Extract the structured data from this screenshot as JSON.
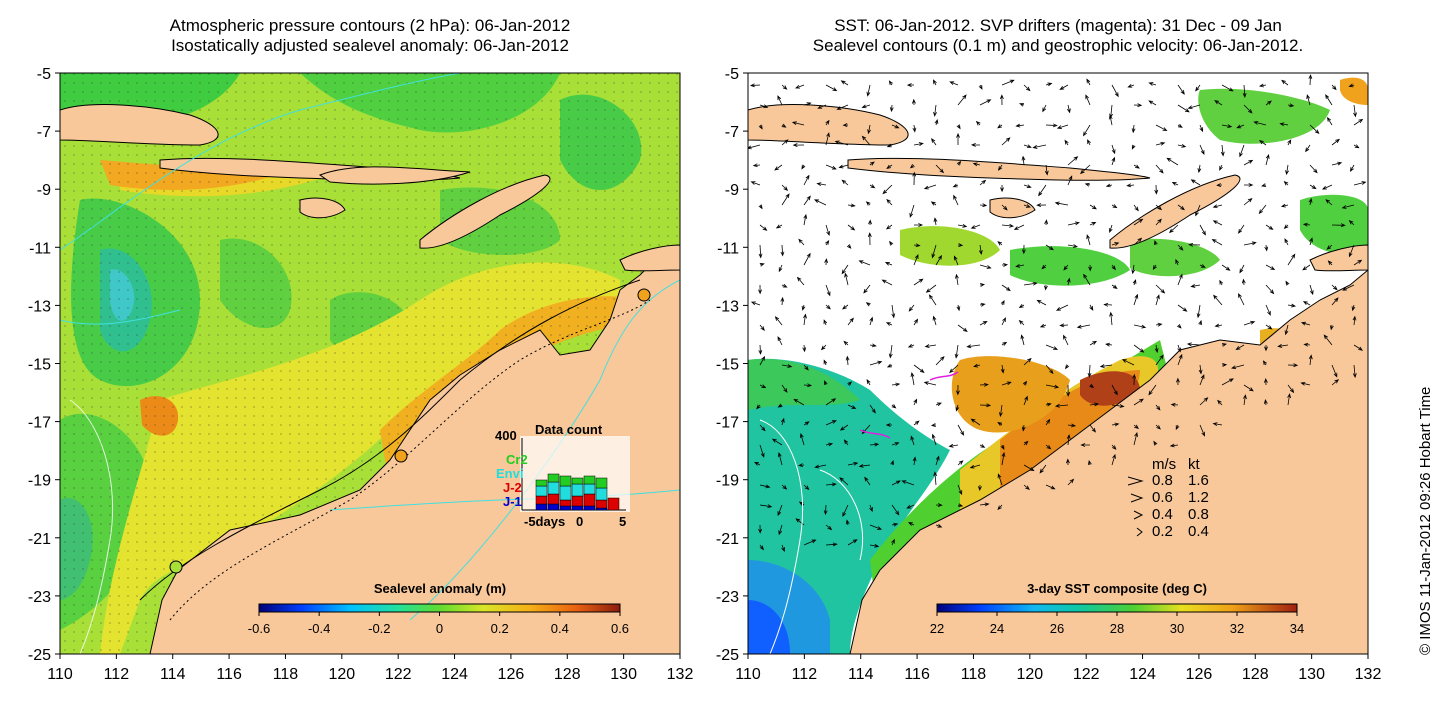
{
  "left_panel": {
    "title_line1": "Atmospheric pressure contours (2 hPa): 06-Jan-2012",
    "title_line2": "Isostatically adjusted sealevel anomaly: 06-Jan-2012",
    "colorbar": {
      "title": "Sealevel anomaly (m)",
      "ticks": [
        "-0.6",
        "-0.4",
        "-0.2",
        "0",
        "0.2",
        "0.4",
        "0.6"
      ]
    },
    "data_count": {
      "title": "Data count",
      "y_label": "400",
      "satellites": [
        {
          "name": "Cr2",
          "color": "#22cc22"
        },
        {
          "name": "Envi",
          "color": "#22dddd"
        },
        {
          "name": "J-2",
          "color": "#dd0000"
        },
        {
          "name": "J-1",
          "color": "#0000cc"
        }
      ],
      "x_labels": [
        "-5days",
        "0",
        "5"
      ]
    }
  },
  "right_panel": {
    "title_line1": "SST: 06-Jan-2012. SVP drifters (magenta): 31 Dec - 09 Jan",
    "title_line2": "Sealevel contours (0.1 m) and geostrophic velocity: 06-Jan-2012.",
    "colorbar": {
      "title": "3-day SST composite (deg C)",
      "ticks": [
        "22",
        "24",
        "26",
        "28",
        "30",
        "32",
        "34"
      ]
    },
    "velocity_legend": {
      "header_ms": "m/s",
      "header_kt": "kt",
      "rows": [
        {
          "ms": "0.8",
          "kt": "1.6"
        },
        {
          "ms": "0.6",
          "kt": "1.2"
        },
        {
          "ms": "0.4",
          "kt": "0.8"
        },
        {
          "ms": "0.2",
          "kt": "0.4"
        }
      ]
    }
  },
  "axes": {
    "y_ticks": [
      "-5",
      "-7",
      "-9",
      "-11",
      "-13",
      "-15",
      "-17",
      "-19",
      "-21",
      "-23",
      "-25"
    ],
    "x_ticks": [
      "110",
      "112",
      "114",
      "116",
      "118",
      "120",
      "122",
      "124",
      "126",
      "128",
      "130",
      "132"
    ]
  },
  "credit": "© IMOS 11-Jan-2012 09:26 Hobart Time",
  "colors": {
    "land": "#f8c89a",
    "ocean_green": "#7ed83a",
    "ocean_yellow": "#e8e42a",
    "ocean_orange": "#f0a21c"
  }
}
